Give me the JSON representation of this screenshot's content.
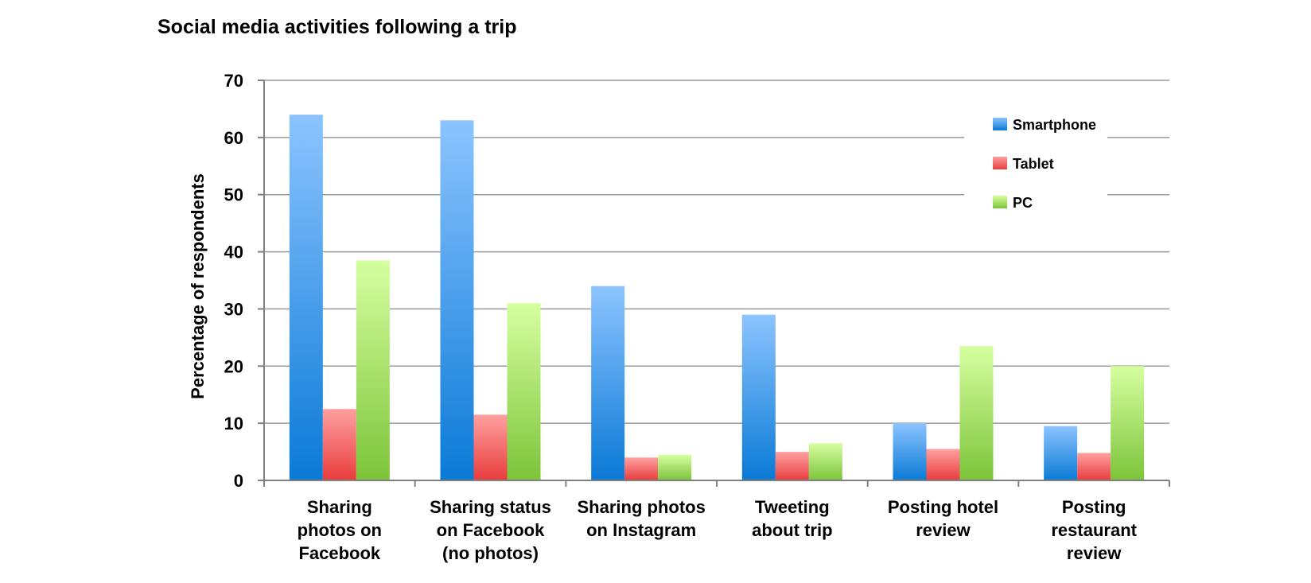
{
  "chart_data": {
    "type": "bar",
    "title": "Social media activities following a trip",
    "xlabel": "",
    "ylabel": "Percentage of respondents",
    "ylim": [
      0,
      70
    ],
    "yticks": [
      0,
      10,
      20,
      30,
      40,
      50,
      60,
      70
    ],
    "grid": true,
    "legend_position": "top-right",
    "categories": [
      [
        "Sharing",
        "photos on",
        "Facebook"
      ],
      [
        "Sharing status",
        "on Facebook",
        "(no photos)"
      ],
      [
        "Sharing photos",
        "on Instagram"
      ],
      [
        "Tweeting",
        "about trip"
      ],
      [
        "Posting hotel",
        "review"
      ],
      [
        "Posting",
        "restaurant",
        "review"
      ]
    ],
    "series": [
      {
        "name": "Smartphone",
        "values": [
          64,
          63,
          34,
          29,
          10,
          9.5
        ],
        "color_top": "#8cc4ff",
        "color_bottom": "#0a7ad6"
      },
      {
        "name": "Tablet",
        "values": [
          12.5,
          11.5,
          4,
          5,
          5.5,
          4.8
        ],
        "color_top": "#ffa0a0",
        "color_bottom": "#e83c3c"
      },
      {
        "name": "PC",
        "values": [
          38.5,
          31,
          4.5,
          6.5,
          23.5,
          20
        ],
        "color_top": "#d6ffa0",
        "color_bottom": "#7cc43a"
      }
    ]
  }
}
